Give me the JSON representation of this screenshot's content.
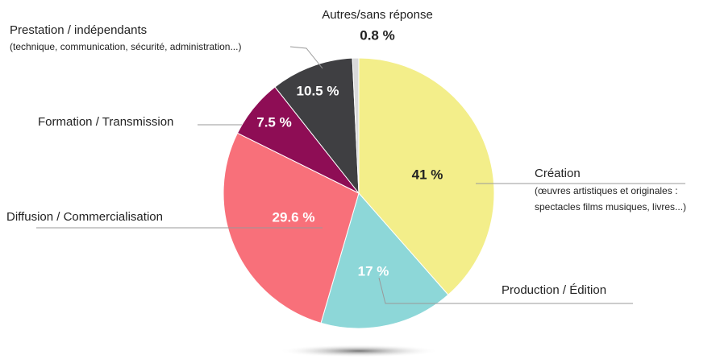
{
  "chart_data": {
    "type": "pie",
    "categories": [
      "Création",
      "Production / Édition",
      "Diffusion / Commercialisation",
      "Formation / Transmission",
      "Prestation / indépendants",
      "Autres/sans réponse"
    ],
    "category_notes": [
      [
        "(œuvres artistiques et originales :",
        "spectacles films musiques, livres...)"
      ],
      null,
      null,
      null,
      [
        "(technique, communication, sécurité, administration...)"
      ],
      null
    ],
    "values": [
      41,
      17,
      29.6,
      7.5,
      10.5,
      0.8
    ],
    "value_labels": [
      "41 %",
      "17 %",
      "29.6 %",
      "7.5 %",
      "10.5 %",
      "0.8 %"
    ],
    "colors": [
      "#f3ee8a",
      "#8dd7d8",
      "#f8707a",
      "#8e0d55",
      "#3f3f42",
      "#d9d9d9"
    ]
  }
}
